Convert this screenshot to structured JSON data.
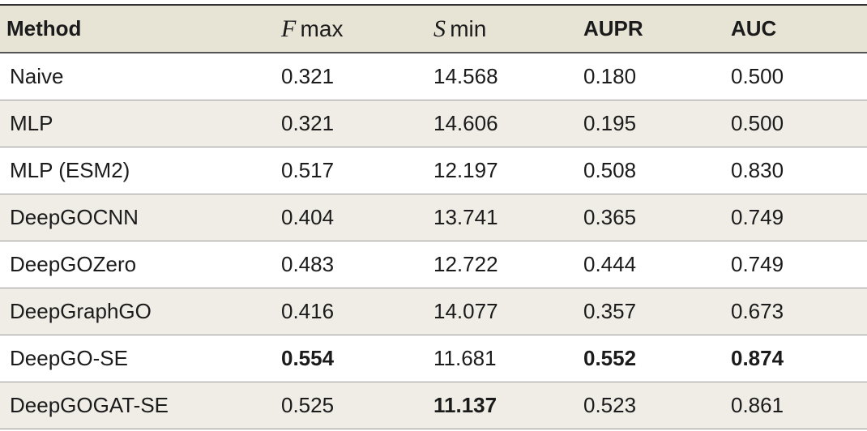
{
  "table": {
    "header": [
      "Method",
      {
        "symbol": "F",
        "suffix": "max"
      },
      {
        "symbol": "S",
        "suffix": "min"
      },
      "AUPR",
      "AUC"
    ],
    "rows": [
      [
        "Naive",
        "0.321",
        "14.568",
        "0.180",
        "0.500"
      ],
      [
        "MLP",
        "0.321",
        "14.606",
        "0.195",
        "0.500"
      ],
      [
        "MLP (ESM2)",
        "0.517",
        "12.197",
        "0.508",
        "0.830"
      ],
      [
        "DeepGOCNN",
        "0.404",
        "13.741",
        "0.365",
        "0.749"
      ],
      [
        "DeepGOZero",
        "0.483",
        "12.722",
        "0.444",
        "0.749"
      ],
      [
        "DeepGraphGO",
        "0.416",
        "14.077",
        "0.357",
        "0.673"
      ],
      [
        "DeepGO-SE",
        "0.554",
        "11.681",
        "0.552",
        "0.874"
      ],
      [
        "DeepGOGAT-SE",
        "0.525",
        "11.137",
        "0.523",
        "0.861"
      ]
    ],
    "bold": [
      [
        6,
        1
      ],
      [
        6,
        3
      ],
      [
        6,
        4
      ],
      [
        7,
        2
      ]
    ]
  }
}
